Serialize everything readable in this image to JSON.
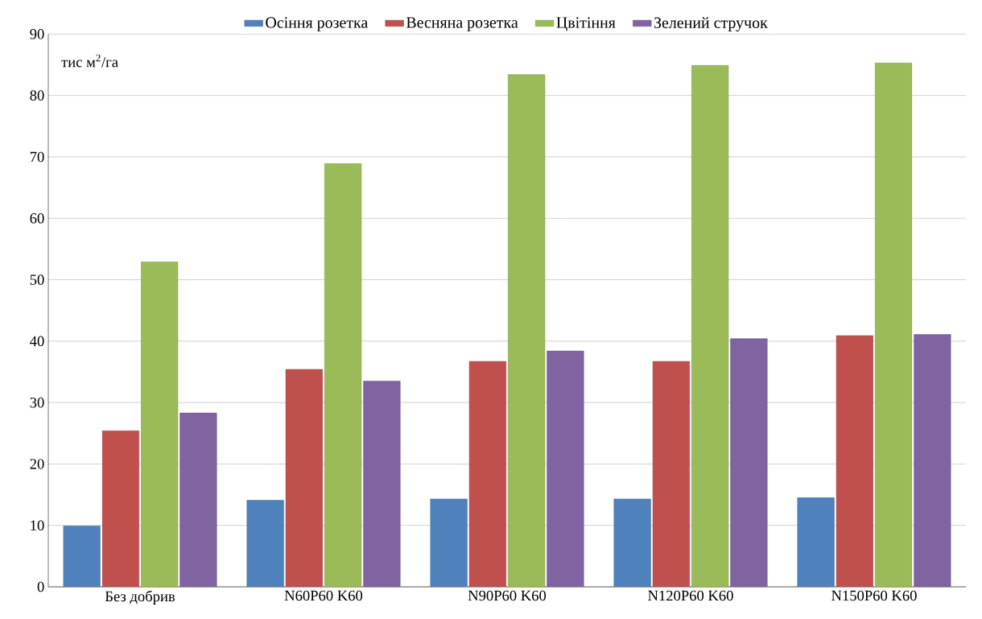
{
  "chart_data": {
    "type": "bar",
    "ylabel": "тис м$^{2}$/га",
    "categories": [
      "Без добрив",
      "N60P60 K60",
      "N90P60 K60",
      "N120P60 K60",
      "N150P60 K60"
    ],
    "series": [
      {
        "name": "Осіння розетка",
        "color": "#4f81bd",
        "values": [
          9.9,
          14.1,
          14.3,
          14.3,
          14.5
        ]
      },
      {
        "name": "Весняна розетка",
        "color": "#c0504d",
        "values": [
          25.4,
          35.4,
          36.7,
          36.7,
          40.9
        ]
      },
      {
        "name": "Цвітіння",
        "color": "#9bbb59",
        "values": [
          52.9,
          68.9,
          83.4,
          84.9,
          85.3
        ]
      },
      {
        "name": "Зелений стручок",
        "color": "#8064a2",
        "values": [
          28.3,
          33.5,
          38.4,
          40.4,
          41.1
        ]
      }
    ],
    "ylim": [
      0,
      90
    ],
    "yticks": [
      0,
      10,
      20,
      30,
      40,
      50,
      60,
      70,
      80,
      90
    ],
    "grid": "y",
    "legend": "top"
  }
}
